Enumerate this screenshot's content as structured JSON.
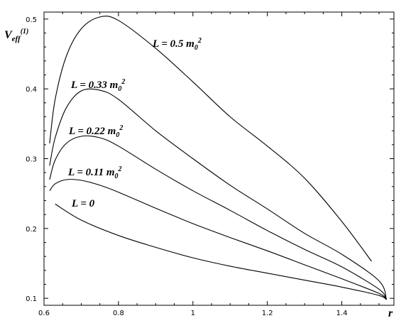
{
  "chart_data": {
    "type": "line",
    "ylabel": {
      "main": "V",
      "sub": "eff",
      "sup": "(1)"
    },
    "xlabel": "r",
    "xlim": [
      0.6,
      1.54
    ],
    "ylim": [
      0.09,
      0.51
    ],
    "xticks": [
      {
        "value": 0.6,
        "label": "0.6"
      },
      {
        "value": 0.8,
        "label": "0.8"
      },
      {
        "value": 1.0,
        "label": "1"
      },
      {
        "value": 1.2,
        "label": "1.2"
      },
      {
        "value": 1.4,
        "label": "1.4"
      }
    ],
    "yticks": [
      {
        "value": 0.1,
        "label": "0.1"
      },
      {
        "value": 0.2,
        "label": "0.2"
      },
      {
        "value": 0.3,
        "label": "0.3"
      },
      {
        "value": 0.4,
        "label": "0.4"
      },
      {
        "value": 0.5,
        "label": "0.5"
      }
    ],
    "series": [
      {
        "name": "L = 0.5 m0^2",
        "label": {
          "base": "L = 0.5 m",
          "sub": "0",
          "sup": "2"
        },
        "x": [
          0.615,
          0.63,
          0.66,
          0.7,
          0.75,
          0.8,
          0.9,
          1.0,
          1.1,
          1.2,
          1.3,
          1.4,
          1.48
        ],
        "y": [
          0.322,
          0.385,
          0.447,
          0.486,
          0.503,
          0.498,
          0.458,
          0.41,
          0.36,
          0.318,
          0.272,
          0.21,
          0.153
        ]
      },
      {
        "name": "L = 0.33 m0^2",
        "label": {
          "base": "L = 0.33 m",
          "sub": "0",
          "sup": "2"
        },
        "x": [
          0.615,
          0.63,
          0.66,
          0.7,
          0.75,
          0.8,
          0.9,
          1.0,
          1.1,
          1.2,
          1.3,
          1.4,
          1.5,
          1.52
        ],
        "y": [
          0.29,
          0.33,
          0.373,
          0.397,
          0.398,
          0.385,
          0.34,
          0.3,
          0.262,
          0.228,
          0.193,
          0.163,
          0.125,
          0.098
        ]
      },
      {
        "name": "L = 0.22 m0^2",
        "label": {
          "base": "L = 0.22 m",
          "sub": "0",
          "sup": "2"
        },
        "x": [
          0.615,
          0.63,
          0.66,
          0.7,
          0.75,
          0.8,
          0.9,
          1.0,
          1.1,
          1.2,
          1.3,
          1.4,
          1.5,
          1.52
        ],
        "y": [
          0.27,
          0.298,
          0.322,
          0.332,
          0.33,
          0.318,
          0.285,
          0.254,
          0.226,
          0.197,
          0.17,
          0.145,
          0.113,
          0.098
        ]
      },
      {
        "name": "L = 0.11 m0^2",
        "label": {
          "base": "L = 0.11 m",
          "sub": "0",
          "sup": "2"
        },
        "x": [
          0.615,
          0.63,
          0.66,
          0.7,
          0.75,
          0.8,
          0.9,
          1.0,
          1.1,
          1.2,
          1.3,
          1.4,
          1.5,
          1.52
        ],
        "y": [
          0.254,
          0.264,
          0.27,
          0.269,
          0.262,
          0.252,
          0.229,
          0.207,
          0.187,
          0.168,
          0.148,
          0.128,
          0.107,
          0.098
        ]
      },
      {
        "name": "L = 0",
        "label": {
          "base": "L = 0",
          "sub": "",
          "sup": ""
        },
        "x": [
          0.63,
          0.7,
          0.8,
          0.9,
          1.0,
          1.1,
          1.2,
          1.3,
          1.4,
          1.5,
          1.52
        ],
        "y": [
          0.235,
          0.212,
          0.19,
          0.173,
          0.158,
          0.146,
          0.136,
          0.126,
          0.116,
          0.104,
          0.098
        ]
      }
    ]
  }
}
